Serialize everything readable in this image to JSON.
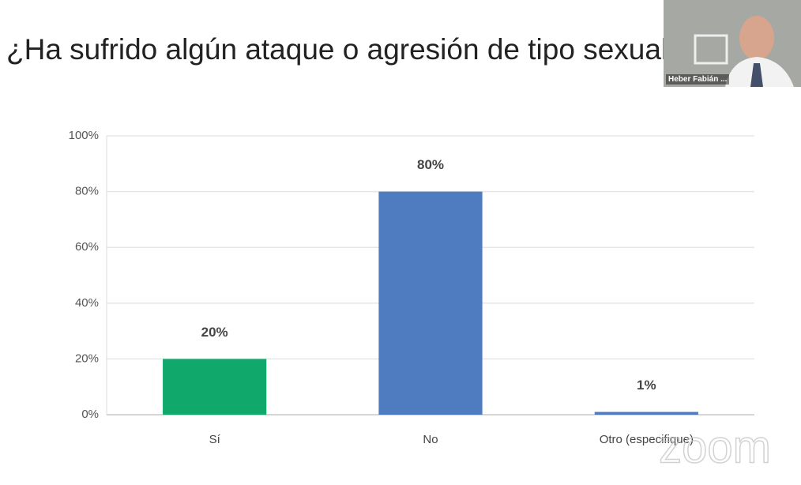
{
  "chart_data": {
    "type": "bar",
    "title": "¿Ha sufrido algún ataque o agresión de tipo sexual?",
    "categories": [
      "Sí",
      "No",
      "Otro (especifique)"
    ],
    "values": [
      20,
      80,
      1
    ],
    "value_labels": [
      "20%",
      "80%",
      "1%"
    ],
    "colors": [
      "#10a86b",
      "#4f7cc0",
      "#4f7cc0"
    ],
    "ylim": [
      0,
      100
    ],
    "yticks": [
      {
        "value": 0,
        "label": "0%"
      },
      {
        "value": 20,
        "label": "20%"
      },
      {
        "value": 40,
        "label": "40%"
      },
      {
        "value": 60,
        "label": "60%"
      },
      {
        "value": 80,
        "label": "80%"
      },
      {
        "value": 100,
        "label": "100%"
      }
    ],
    "grid": true
  },
  "overlay": {
    "participant_name": "Heber Fabián ...",
    "watermark": "zoom"
  }
}
